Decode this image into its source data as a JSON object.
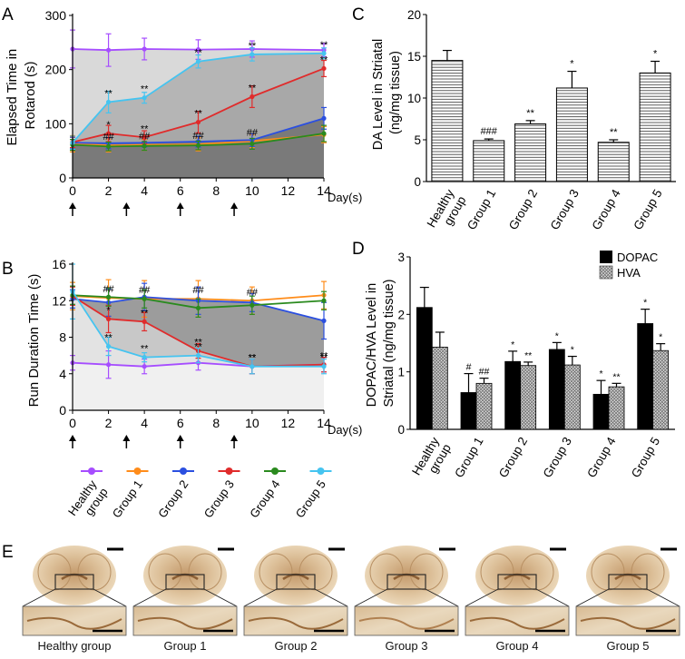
{
  "panel_letters": [
    "A",
    "B",
    "C",
    "D",
    "E"
  ],
  "colors": {
    "healthy": "#a64dff",
    "group1": "#ff8c1a",
    "group2": "#2b4fe0",
    "group3": "#e02b2b",
    "group4": "#2a8a1e",
    "group5": "#45c4f0",
    "light_fill": "#d9d9d9",
    "mid_fill": "#b5b5b5",
    "dark_fill": "#7a7a7a",
    "panelB_fill": "#f0f0f0",
    "panelB_mid": "#9c9c9c"
  },
  "panelA": {
    "ylabel": "Elapsed Time in\nRotarod (s)",
    "xlabel": "Day(s)"
  },
  "panelB": {
    "ylabel": "Run Duration Time (s)",
    "xlabel": "Day(s)",
    "legend_labels": [
      "Healthy\ngroup",
      "Group 1",
      "Group 2",
      "Group 3",
      "Group 4",
      "Group 5"
    ]
  },
  "panelC": {
    "ylabel": "DA Level in Striatal\n(ng/mg tissue)"
  },
  "panelD": {
    "ylabel": "DOPAC/HVA Level in\nStriatal (ng/mg tissue)",
    "legend": [
      "DOPAC",
      "HVA"
    ]
  },
  "panelE": {
    "labels": [
      "Healthy group",
      "Group 1",
      "Group 2",
      "Group 3",
      "Group 4",
      "Group 5"
    ]
  },
  "chart_data": [
    {
      "panel": "A",
      "type": "line",
      "x": [
        0,
        2,
        4,
        7,
        10,
        14
      ],
      "xticks": [
        0,
        2,
        4,
        6,
        8,
        10,
        12,
        14
      ],
      "yticks": [
        0,
        100,
        200,
        300
      ],
      "xlim": [
        0,
        14
      ],
      "ylim": [
        0,
        300
      ],
      "injection_days": [
        0,
        3,
        6,
        9
      ],
      "series": [
        {
          "key": "healthy",
          "values": [
            238,
            236,
            238,
            237,
            238,
            236
          ],
          "err": [
            35,
            30,
            20,
            18,
            15,
            12
          ],
          "labels": [
            "",
            "",
            "",
            "",
            "",
            ""
          ]
        },
        {
          "key": "group1",
          "values": [
            63,
            60,
            61,
            62,
            68,
            80
          ],
          "err": [
            15,
            12,
            10,
            12,
            12,
            15
          ],
          "labels": [
            "",
            "##",
            "##",
            "##",
            "##",
            ""
          ]
        },
        {
          "key": "group2",
          "values": [
            65,
            64,
            65,
            67,
            70,
            110
          ],
          "err": [
            10,
            10,
            8,
            10,
            12,
            20
          ],
          "labels": [
            "",
            "",
            "",
            "",
            "",
            ""
          ]
        },
        {
          "key": "group3",
          "values": [
            66,
            82,
            75,
            103,
            150,
            202
          ],
          "err": [
            10,
            15,
            12,
            20,
            20,
            15
          ],
          "labels": [
            "",
            "*",
            "**",
            "**",
            "**",
            "**"
          ]
        },
        {
          "key": "group4",
          "values": [
            61,
            58,
            59,
            60,
            63,
            82
          ],
          "err": [
            10,
            8,
            8,
            8,
            10,
            15
          ],
          "labels": [
            "",
            "",
            "",
            "",
            "",
            ""
          ]
        },
        {
          "key": "group5",
          "values": [
            65,
            140,
            148,
            215,
            228,
            230
          ],
          "err": [
            12,
            20,
            10,
            12,
            12,
            10
          ],
          "labels": [
            "",
            "**",
            "**",
            "**",
            "**",
            "**"
          ]
        }
      ]
    },
    {
      "panel": "B",
      "type": "line",
      "x": [
        0,
        2,
        4,
        7,
        10,
        14
      ],
      "xticks": [
        0,
        2,
        4,
        6,
        8,
        10,
        12,
        14
      ],
      "yticks": [
        0,
        4,
        8,
        12,
        16
      ],
      "xlim": [
        0,
        14
      ],
      "ylim": [
        0,
        16
      ],
      "injection_days": [
        0,
        3,
        6,
        9
      ],
      "series": [
        {
          "key": "healthy",
          "values": [
            5.2,
            5.0,
            4.8,
            5.2,
            4.8,
            5.0
          ],
          "err": [
            0.8,
            1.5,
            0.8,
            0.8,
            0.8,
            0.8
          ],
          "labels": [
            "",
            "",
            "",
            "",
            "",
            ""
          ]
        },
        {
          "key": "group1",
          "values": [
            12.5,
            12.3,
            12.2,
            12.2,
            12.0,
            12.6
          ],
          "err": [
            1.5,
            2.0,
            2.0,
            2.0,
            1.5,
            1.5
          ],
          "labels": [
            "",
            "##",
            "##",
            "##",
            "##",
            ""
          ]
        },
        {
          "key": "group2",
          "values": [
            12.2,
            11.8,
            12.4,
            12.0,
            11.8,
            9.8
          ],
          "err": [
            1.0,
            1.5,
            1.5,
            1.5,
            1.0,
            2.0
          ],
          "labels": [
            "",
            "",
            "",
            "",
            "",
            ""
          ]
        },
        {
          "key": "group3",
          "values": [
            12.5,
            10.0,
            9.7,
            6.5,
            4.8,
            5.0
          ],
          "err": [
            1.0,
            1.5,
            1.0,
            0.8,
            0.8,
            0.8
          ],
          "labels": [
            "",
            "*",
            "**",
            "**",
            "**",
            "**"
          ]
        },
        {
          "key": "group4",
          "values": [
            12.6,
            12.4,
            12.2,
            11.2,
            11.5,
            12.0
          ],
          "err": [
            1.0,
            1.0,
            1.0,
            1.0,
            1.0,
            1.0
          ],
          "labels": [
            "",
            "",
            "",
            "",
            "",
            ""
          ]
        },
        {
          "key": "group5",
          "values": [
            13.0,
            7.0,
            5.8,
            6.0,
            4.8,
            4.8
          ],
          "err": [
            3.0,
            1.0,
            0.5,
            0.8,
            0.8,
            0.8
          ],
          "labels": [
            "",
            "**",
            "**",
            "**",
            "**",
            "**"
          ]
        }
      ]
    },
    {
      "panel": "C",
      "type": "bar",
      "categories": [
        "Healthy\ngroup",
        "Group 1",
        "Group 2",
        "Group 3",
        "Group 4",
        "Group 5"
      ],
      "values": [
        14.5,
        4.9,
        6.9,
        11.2,
        4.7,
        13.0
      ],
      "err": [
        1.2,
        0.2,
        0.4,
        2.0,
        0.3,
        1.4
      ],
      "labels": [
        "",
        "###",
        "**",
        "*",
        "**",
        "*"
      ],
      "yticks": [
        0,
        5,
        10,
        15,
        20
      ],
      "ylim": [
        0,
        20
      ]
    },
    {
      "panel": "D",
      "type": "bar",
      "categories": [
        "Healthy\ngroup",
        "Group 1",
        "Group 2",
        "Group 3",
        "Group 4",
        "Group 5"
      ],
      "series": [
        {
          "name": "DOPAC",
          "values": [
            2.12,
            0.64,
            1.18,
            1.39,
            0.61,
            1.84
          ],
          "err": [
            0.35,
            0.33,
            0.18,
            0.12,
            0.24,
            0.25
          ],
          "labels": [
            "",
            "#",
            "*",
            "*",
            "*",
            "*"
          ]
        },
        {
          "name": "HVA",
          "values": [
            1.43,
            0.8,
            1.11,
            1.12,
            0.74,
            1.37
          ],
          "err": [
            0.26,
            0.09,
            0.06,
            0.15,
            0.06,
            0.12
          ],
          "labels": [
            "",
            "##",
            "**",
            "*",
            "**",
            "*"
          ]
        }
      ],
      "yticks": [
        0,
        1,
        2,
        3
      ],
      "ylim": [
        0,
        3
      ]
    }
  ]
}
